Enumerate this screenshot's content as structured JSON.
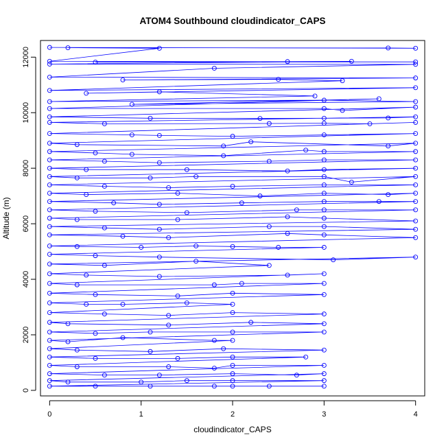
{
  "chart_data": {
    "type": "scatter",
    "title": "ATOM4 Southbound cloudindicator_CAPS",
    "xlabel": "cloudindicator_CAPS",
    "ylabel": "Altitude (m)",
    "xlim": [
      -0.1,
      4.1
    ],
    "ylim": [
      -200,
      12600
    ],
    "xticks": [
      0,
      1,
      2,
      3,
      4
    ],
    "yticks": [
      0,
      2000,
      4000,
      6000,
      8000,
      10000,
      12000
    ],
    "grid": false,
    "series_color": "#0000ff",
    "series": [
      {
        "style": "points-and-lines",
        "marker": "open-circle",
        "points": [
          [
            0,
            12350
          ],
          [
            4,
            12320
          ],
          [
            3.7,
            12330
          ],
          [
            0.2,
            12340
          ],
          [
            1.2,
            12320
          ],
          [
            0,
            11850
          ],
          [
            4,
            11830
          ],
          [
            0.5,
            11820
          ],
          [
            2.6,
            11840
          ],
          [
            3.3,
            11850
          ],
          [
            0,
            11750
          ],
          [
            4,
            11740
          ],
          [
            1.8,
            11600
          ],
          [
            0,
            11280
          ],
          [
            4,
            11250
          ],
          [
            0.8,
            11180
          ],
          [
            2.5,
            11200
          ],
          [
            3.2,
            11150
          ],
          [
            0,
            10800
          ],
          [
            4,
            10900
          ],
          [
            0.4,
            10700
          ],
          [
            1.2,
            10750
          ],
          [
            2.9,
            10600
          ],
          [
            0,
            10400
          ],
          [
            3,
            10450
          ],
          [
            4,
            10400
          ],
          [
            0.9,
            10300
          ],
          [
            3.6,
            10500
          ],
          [
            0,
            10150
          ],
          [
            3,
            10150
          ],
          [
            3.2,
            10080
          ],
          [
            4,
            10200
          ],
          [
            0,
            9850
          ],
          [
            1.1,
            9800
          ],
          [
            2.3,
            9790
          ],
          [
            3,
            9800
          ],
          [
            3.7,
            9810
          ],
          [
            4,
            9850
          ],
          [
            0,
            9650
          ],
          [
            0.6,
            9600
          ],
          [
            2.4,
            9610
          ],
          [
            3,
            9620
          ],
          [
            3.5,
            9600
          ],
          [
            4,
            9650
          ],
          [
            0,
            9250
          ],
          [
            0.9,
            9200
          ],
          [
            1.2,
            9180
          ],
          [
            2,
            9150
          ],
          [
            3,
            9200
          ],
          [
            4,
            9250
          ],
          [
            0,
            8900
          ],
          [
            0.3,
            8850
          ],
          [
            1.9,
            8800
          ],
          [
            2.2,
            8950
          ],
          [
            3.7,
            8800
          ],
          [
            4,
            8900
          ],
          [
            0,
            8600
          ],
          [
            0.5,
            8550
          ],
          [
            0.9,
            8500
          ],
          [
            1.9,
            8450
          ],
          [
            2.8,
            8650
          ],
          [
            3,
            8600
          ],
          [
            4,
            8600
          ],
          [
            0,
            8300
          ],
          [
            0.6,
            8250
          ],
          [
            1.2,
            8200
          ],
          [
            2.4,
            8250
          ],
          [
            3,
            8300
          ],
          [
            4,
            8300
          ],
          [
            0,
            8000
          ],
          [
            0.4,
            7950
          ],
          [
            1.5,
            7950
          ],
          [
            2.6,
            7900
          ],
          [
            3,
            7950
          ],
          [
            4,
            8000
          ],
          [
            0,
            7700
          ],
          [
            0.3,
            7650
          ],
          [
            1.1,
            7650
          ],
          [
            1.6,
            7700
          ],
          [
            3,
            7700
          ],
          [
            3.3,
            7500
          ],
          [
            4,
            7700
          ],
          [
            0,
            7400
          ],
          [
            0.6,
            7350
          ],
          [
            1.3,
            7300
          ],
          [
            2,
            7350
          ],
          [
            3,
            7400
          ],
          [
            4,
            7400
          ],
          [
            0,
            7100
          ],
          [
            0.4,
            7050
          ],
          [
            1.4,
            7100
          ],
          [
            2.3,
            7000
          ],
          [
            3,
            7100
          ],
          [
            3.7,
            7050
          ],
          [
            4,
            7100
          ],
          [
            0,
            6800
          ],
          [
            0.7,
            6750
          ],
          [
            1.2,
            6700
          ],
          [
            2.1,
            6750
          ],
          [
            3,
            6800
          ],
          [
            3.6,
            6800
          ],
          [
            4,
            6800
          ],
          [
            0,
            6500
          ],
          [
            0.5,
            6450
          ],
          [
            1.5,
            6400
          ],
          [
            2.7,
            6500
          ],
          [
            3,
            6500
          ],
          [
            4,
            6500
          ],
          [
            0,
            6200
          ],
          [
            0.3,
            6150
          ],
          [
            1.4,
            6150
          ],
          [
            2.6,
            6250
          ],
          [
            3,
            6200
          ],
          [
            4,
            6100
          ],
          [
            0,
            5900
          ],
          [
            0.6,
            5850
          ],
          [
            1.2,
            5800
          ],
          [
            2.4,
            5900
          ],
          [
            3,
            5900
          ],
          [
            4,
            5800
          ],
          [
            0,
            5600
          ],
          [
            0.8,
            5550
          ],
          [
            1.3,
            5500
          ],
          [
            2.6,
            5650
          ],
          [
            3,
            5600
          ],
          [
            4,
            5500
          ],
          [
            0,
            5200
          ],
          [
            0.3,
            5180
          ],
          [
            1,
            5150
          ],
          [
            1.6,
            5200
          ],
          [
            2,
            5180
          ],
          [
            2.5,
            5150
          ],
          [
            3,
            5150
          ],
          [
            0,
            4900
          ],
          [
            0.5,
            4850
          ],
          [
            1.2,
            4800
          ],
          [
            3.1,
            4700
          ],
          [
            4,
            4800
          ],
          [
            0,
            4550
          ],
          [
            0.6,
            4500
          ],
          [
            1.6,
            4650
          ],
          [
            2.4,
            4500
          ],
          [
            0,
            4200
          ],
          [
            0.4,
            4150
          ],
          [
            1.2,
            4100
          ],
          [
            2.6,
            4150
          ],
          [
            3,
            4200
          ],
          [
            0,
            3850
          ],
          [
            0.3,
            3800
          ],
          [
            1.8,
            3800
          ],
          [
            2.1,
            3850
          ],
          [
            3,
            3850
          ],
          [
            0,
            3500
          ],
          [
            0.5,
            3450
          ],
          [
            1.4,
            3400
          ],
          [
            2,
            3500
          ],
          [
            3,
            3450
          ],
          [
            0,
            3150
          ],
          [
            0.4,
            3100
          ],
          [
            0.8,
            3100
          ],
          [
            1.5,
            3150
          ],
          [
            2,
            3100
          ],
          [
            0,
            2800
          ],
          [
            0.6,
            2750
          ],
          [
            1.3,
            2700
          ],
          [
            2,
            2800
          ],
          [
            3,
            2750
          ],
          [
            0,
            2450
          ],
          [
            0.2,
            2400
          ],
          [
            1.3,
            2350
          ],
          [
            2.2,
            2450
          ],
          [
            3,
            2400
          ],
          [
            0,
            2100
          ],
          [
            0.5,
            2050
          ],
          [
            1.1,
            2100
          ],
          [
            2,
            2100
          ],
          [
            3,
            2100
          ],
          [
            0,
            1800
          ],
          [
            0.2,
            1750
          ],
          [
            0.8,
            1900
          ],
          [
            1.8,
            1800
          ],
          [
            2,
            1800
          ],
          [
            0,
            1500
          ],
          [
            0.3,
            1450
          ],
          [
            1.1,
            1400
          ],
          [
            1.9,
            1500
          ],
          [
            3,
            1450
          ],
          [
            0,
            1200
          ],
          [
            0.5,
            1150
          ],
          [
            1.4,
            1150
          ],
          [
            2,
            1200
          ],
          [
            2.8,
            1200
          ],
          [
            0,
            900
          ],
          [
            0.3,
            850
          ],
          [
            1.3,
            850
          ],
          [
            1.8,
            800
          ],
          [
            2,
            900
          ],
          [
            3,
            900
          ],
          [
            0,
            600
          ],
          [
            0.6,
            550
          ],
          [
            1.2,
            550
          ],
          [
            2,
            600
          ],
          [
            2.7,
            550
          ],
          [
            3,
            600
          ],
          [
            0,
            350
          ],
          [
            0.2,
            300
          ],
          [
            1,
            300
          ],
          [
            1.5,
            350
          ],
          [
            2,
            350
          ],
          [
            3,
            350
          ],
          [
            0,
            150
          ],
          [
            0.5,
            150
          ],
          [
            1.1,
            150
          ],
          [
            1.8,
            150
          ],
          [
            2,
            150
          ],
          [
            2.4,
            150
          ],
          [
            3,
            150
          ]
        ]
      }
    ]
  }
}
